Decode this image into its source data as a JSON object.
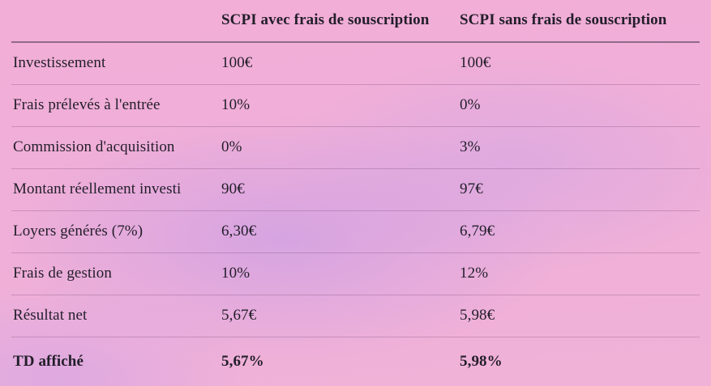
{
  "table": {
    "header": {
      "label_col": "",
      "col1": "SCPI avec frais de souscription",
      "col2": "SCPI sans frais de souscription"
    },
    "rows": [
      {
        "label": "Investissement",
        "col1": "100€",
        "col2": "100€",
        "bold": false
      },
      {
        "label": "Frais prélevés à l'entrée",
        "col1": "10%",
        "col2": "0%",
        "bold": false
      },
      {
        "label": "Commission d'acquisition",
        "col1": "0%",
        "col2": "3%",
        "bold": false
      },
      {
        "label": "Montant réellement investi",
        "col1": "90€",
        "col2": "97€",
        "bold": false
      },
      {
        "label": "Loyers générés (7%)",
        "col1": "6,30€",
        "col2": "6,79€",
        "bold": false
      },
      {
        "label": "Frais de gestion",
        "col1": "10%",
        "col2": "12%",
        "bold": false
      },
      {
        "label": "Résultat net",
        "col1": "5,67€",
        "col2": "5,98€",
        "bold": false
      },
      {
        "label": "TD affiché",
        "col1": "5,67%",
        "col2": "5,98%",
        "bold": true
      }
    ]
  },
  "colors": {
    "background_pink": "#f1afd8",
    "background_purple": "#c19be9",
    "text": "#221e2a",
    "header_rule": "rgba(62,52,72,0.55)",
    "row_rule": "rgba(105,62,105,0.28)"
  }
}
